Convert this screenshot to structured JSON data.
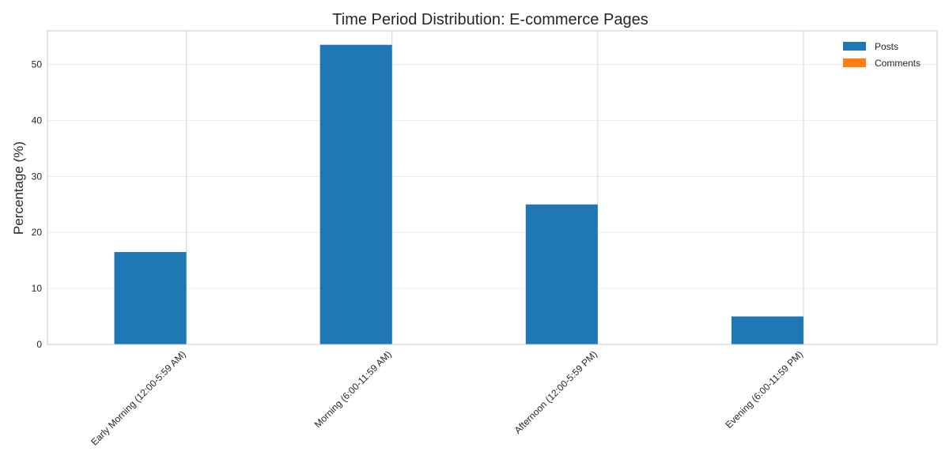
{
  "chart_data": {
    "type": "bar",
    "title": "Time Period Distribution: E-commerce Pages",
    "xlabel": "",
    "ylabel": "Percentage (%)",
    "categories": [
      "Early Morning (12:00-5:59 AM)",
      "Morning (6:00-11:59 AM)",
      "Afternoon (12:00-5:59 PM)",
      "Evening (6:00-11:59 PM)"
    ],
    "series": [
      {
        "name": "Posts",
        "color": "#1f77b4",
        "values": [
          16.5,
          53.5,
          25.0,
          5.0
        ]
      },
      {
        "name": "Comments",
        "color": "#ff7f0e",
        "values": [
          0,
          0,
          0,
          0
        ]
      }
    ],
    "ylim": [
      0,
      56
    ],
    "yticks": [
      0,
      10,
      20,
      30,
      40,
      50
    ],
    "grid": true,
    "legend_position": "top-right"
  }
}
